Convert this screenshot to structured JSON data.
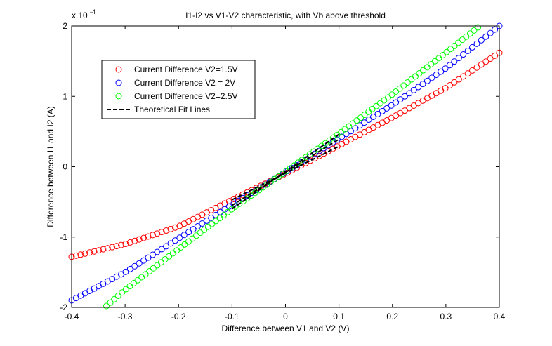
{
  "chart_data": {
    "type": "scatter",
    "title": "I1-I2 vs V1-V2 characteristic, with Vb above threshold",
    "xlabel": "Difference between V1 and V2 (V)",
    "ylabel": "Difference between I1 and I2 (A)",
    "y_exponent_label": "x 10",
    "y_exponent_power": "-4",
    "xlim": [
      -0.4,
      0.4
    ],
    "ylim": [
      -2,
      2
    ],
    "x_ticks": [
      -0.4,
      -0.3,
      -0.2,
      -0.1,
      0,
      0.1,
      0.2,
      0.3,
      0.4
    ],
    "x_tick_labels": [
      "-0.4",
      "-0.3",
      "-0.2",
      "-0.1",
      "0",
      "0.1",
      "0.2",
      "0.3",
      "0.4"
    ],
    "y_ticks": [
      -2,
      -1,
      0,
      1,
      2
    ],
    "y_tick_labels": [
      "-2",
      "-1",
      "0",
      "1",
      "2"
    ],
    "grid": false,
    "legend_position": "top-left",
    "series": [
      {
        "name": "Current Difference V2=1.5V",
        "color": "#ff0000",
        "marker": "circle",
        "x_range": [
          -0.4,
          0.4
        ],
        "points": [
          [
            -0.4,
            -1.28
          ],
          [
            -0.3,
            -1.1
          ],
          [
            -0.2,
            -0.85
          ],
          [
            -0.1,
            -0.47
          ],
          [
            0,
            -0.1
          ],
          [
            0.1,
            0.3
          ],
          [
            0.2,
            0.7
          ],
          [
            0.3,
            1.12
          ],
          [
            0.4,
            1.62
          ]
        ]
      },
      {
        "name": "Current Difference V2 = 2V",
        "color": "#0000ff",
        "marker": "circle",
        "x_range": [
          -0.4,
          0.4
        ],
        "points": [
          [
            -0.4,
            -1.9
          ],
          [
            -0.3,
            -1.5
          ],
          [
            -0.2,
            -1.02
          ],
          [
            -0.1,
            -0.54
          ],
          [
            0,
            -0.08
          ],
          [
            0.1,
            0.4
          ],
          [
            0.2,
            0.88
          ],
          [
            0.3,
            1.4
          ],
          [
            0.4,
            2.0
          ]
        ]
      },
      {
        "name": "Current Difference V2=2.5V",
        "color": "#00ff00",
        "marker": "circle",
        "x_range": [
          -0.335,
          0.36
        ],
        "points": [
          [
            -0.335,
            -1.98
          ],
          [
            -0.3,
            -1.75
          ],
          [
            -0.2,
            -1.17
          ],
          [
            -0.1,
            -0.6
          ],
          [
            0,
            -0.07
          ],
          [
            0.1,
            0.47
          ],
          [
            0.2,
            1.03
          ],
          [
            0.3,
            1.62
          ],
          [
            0.36,
            1.98
          ]
        ]
      },
      {
        "name": "Theoretical Fit Lines",
        "color": "#000000",
        "dashed": true,
        "lines": [
          {
            "x_range": [
              -0.1,
              0.1
            ],
            "slope": 3.8,
            "intercept": -0.09
          },
          {
            "x_range": [
              -0.1,
              0.1
            ],
            "slope": 4.7,
            "intercept": -0.08
          },
          {
            "x_range": [
              -0.1,
              0.1
            ],
            "slope": 5.3,
            "intercept": -0.07
          }
        ]
      }
    ],
    "samples_per_series": 96
  }
}
